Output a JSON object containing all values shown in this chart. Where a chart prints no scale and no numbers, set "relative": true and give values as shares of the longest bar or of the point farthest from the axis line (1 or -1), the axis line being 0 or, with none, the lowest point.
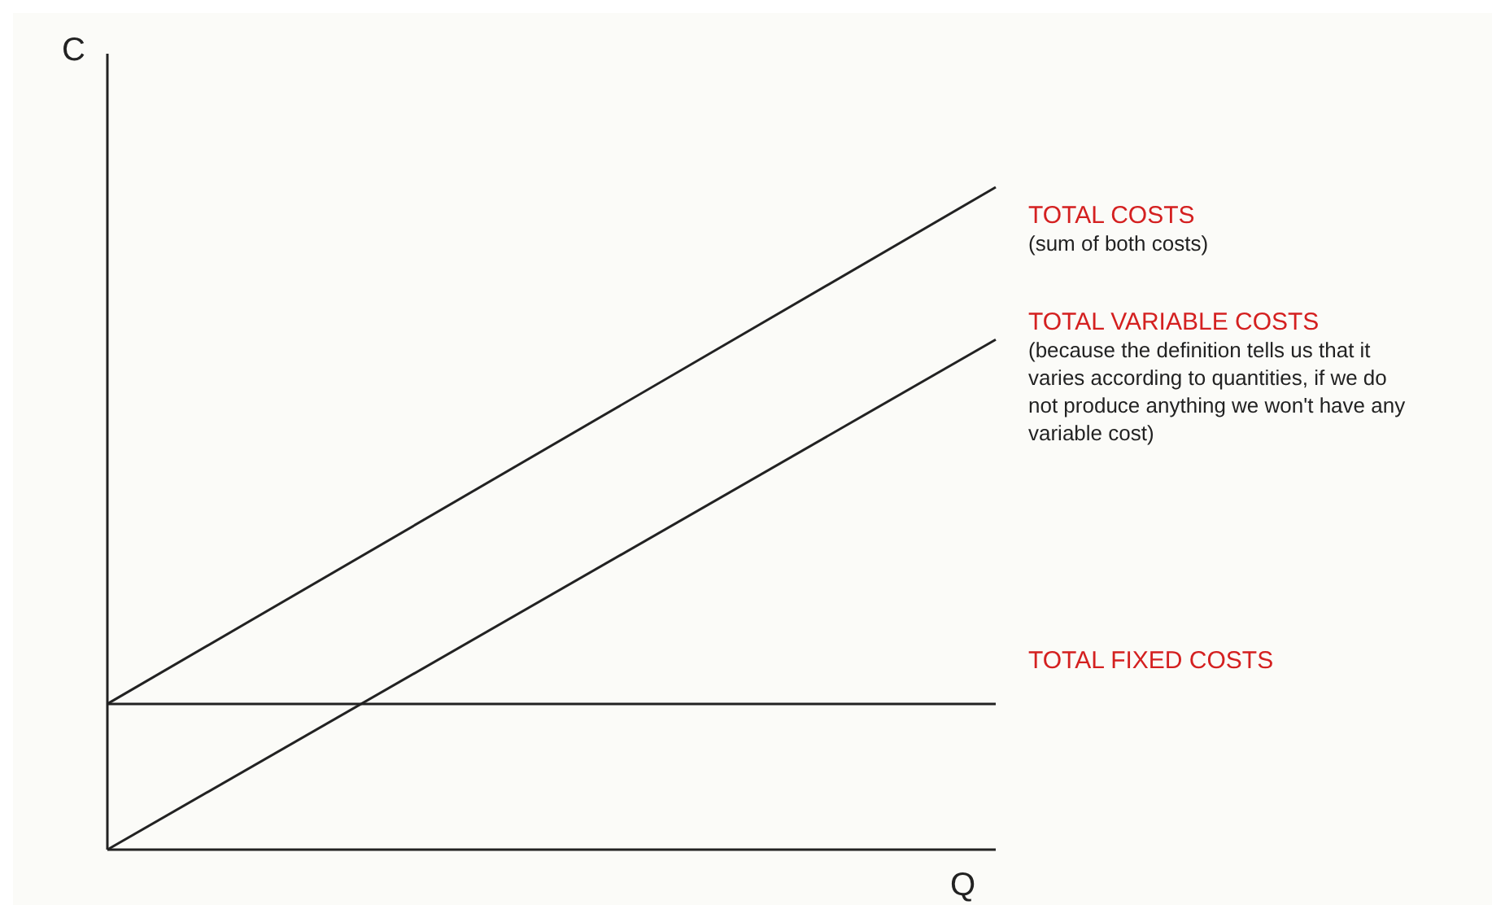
{
  "chart_data": {
    "type": "line",
    "relative": true,
    "xlabel": "Q",
    "ylabel": "C",
    "categories": [
      null,
      null
    ],
    "marker": "none",
    "line_style": "solid",
    "series": [
      {
        "name": "TOTAL COSTS",
        "color": "#222222",
        "values": [
          0.22,
          1
        ]
      },
      {
        "name": "TOTAL VARIABLE COSTS",
        "color": "#222222",
        "values": [
          0,
          0.77
        ]
      },
      {
        "name": "TOTAL FIXED COSTS",
        "color": "#222222",
        "values": [
          0.22,
          0.22
        ]
      }
    ],
    "annotations": [
      "(sum of both costs)",
      "(because the definition tells us that it varies according to quantities, if we do not produce anything we won't have any variable cost)"
    ]
  }
}
